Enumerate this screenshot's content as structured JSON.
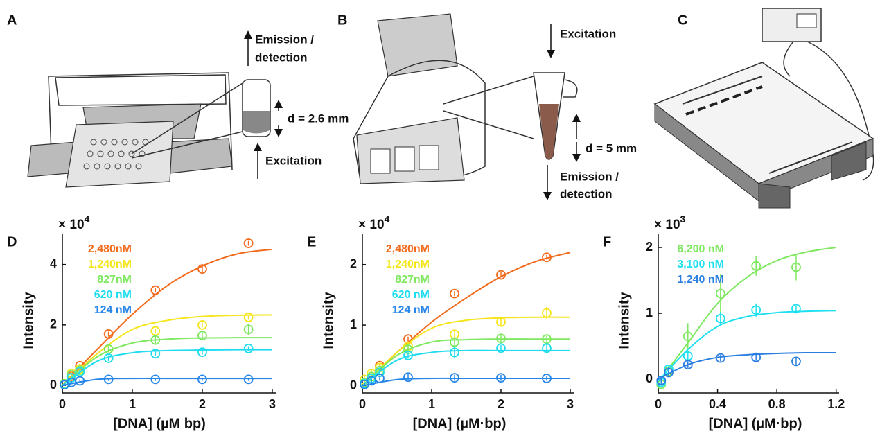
{
  "illustrations": {
    "A": {
      "label": "A",
      "texts": [
        "Emission /",
        "detection",
        "d = 2.6 mm",
        "Excitation"
      ]
    },
    "B": {
      "label": "B",
      "texts": [
        "Excitation",
        "d = 5 mm",
        "Emission /",
        "detection"
      ]
    },
    "C": {
      "label": "C"
    }
  },
  "chart_data": [
    {
      "type": "scatter",
      "panel": "D",
      "multiplier": "× 10",
      "multiplier_exponent": "4",
      "xlabel": "[DNA] (µM bp)",
      "ylabel": "Intensity",
      "xlim": [
        0,
        3.05
      ],
      "ylim": [
        -0.25,
        5
      ],
      "xticks": [
        0,
        1,
        2,
        3
      ],
      "yticks": [
        0,
        2,
        4
      ],
      "x": [
        0.03,
        0.13,
        0.25,
        0.66,
        1.33,
        2.0,
        2.66
      ],
      "fit_x": [
        0,
        0.5,
        1,
        1.5,
        2,
        2.5,
        3
      ],
      "series": [
        {
          "name": "2,480nM",
          "color": "#f26b1d",
          "values": [
            0.05,
            0.3,
            0.65,
            1.7,
            3.15,
            3.85,
            4.7
          ],
          "errors": [
            0.05,
            0.05,
            0.06,
            0.08,
            0.08,
            0.1,
            0.08
          ],
          "fit": [
            0,
            1.2,
            2.35,
            3.3,
            3.95,
            4.35,
            4.5
          ]
        },
        {
          "name": "1,240nM",
          "color": "#f5e51a",
          "values": [
            0.05,
            0.4,
            0.55,
            1.2,
            1.8,
            2.0,
            2.25
          ],
          "errors": [
            0.05,
            0.1,
            0.06,
            0.08,
            0.08,
            0.08,
            0.08
          ],
          "fit": [
            0,
            1.05,
            1.85,
            2.15,
            2.28,
            2.32,
            2.33
          ]
        },
        {
          "name": "827nM",
          "color": "#7ee85f",
          "values": [
            0.05,
            0.35,
            0.5,
            1.2,
            1.5,
            1.65,
            1.85
          ],
          "errors": [
            0.05,
            0.06,
            0.06,
            0.1,
            0.12,
            0.15,
            0.18
          ],
          "fit": [
            0,
            0.95,
            1.4,
            1.53,
            1.57,
            1.58,
            1.58
          ]
        },
        {
          "name": "620 nM",
          "color": "#1fdcf0",
          "values": [
            0.03,
            0.25,
            0.45,
            0.9,
            1.05,
            1.1,
            1.22
          ],
          "errors": [
            0.05,
            0.05,
            0.06,
            0.1,
            0.08,
            0.08,
            0.08
          ],
          "fit": [
            0,
            0.8,
            1.08,
            1.15,
            1.17,
            1.18,
            1.18
          ]
        },
        {
          "name": "124 nM",
          "color": "#2585e8",
          "values": [
            0.02,
            0.1,
            0.15,
            0.2,
            0.2,
            0.2,
            0.2
          ],
          "errors": [
            0.04,
            0.04,
            0.05,
            0.05,
            0.05,
            0.05,
            0.05
          ],
          "fit": [
            0,
            0.2,
            0.23,
            0.23,
            0.23,
            0.23,
            0.23
          ]
        }
      ]
    },
    {
      "type": "scatter",
      "panel": "E",
      "multiplier": "× 10",
      "multiplier_exponent": "4",
      "xlabel": "[DNA] (µM·bp)",
      "ylabel": "Intensity",
      "xlim": [
        0,
        3.05
      ],
      "ylim": [
        -0.12,
        2.5
      ],
      "xticks": [
        0,
        1,
        2,
        3
      ],
      "yticks": [
        0,
        1,
        2
      ],
      "x": [
        0.03,
        0.13,
        0.25,
        0.66,
        1.33,
        2.0,
        2.66
      ],
      "fit_x": [
        0,
        0.5,
        1,
        1.5,
        2,
        2.5,
        3
      ],
      "series": [
        {
          "name": "2,480nM",
          "color": "#f26b1d",
          "values": [
            0.02,
            0.15,
            0.33,
            0.77,
            1.52,
            1.83,
            2.12
          ],
          "errors": [
            0.03,
            0.03,
            0.03,
            0.04,
            0.04,
            0.04,
            0.04
          ],
          "fit": [
            0,
            0.55,
            1.05,
            1.45,
            1.8,
            2.05,
            2.2
          ]
        },
        {
          "name": "1,240nM",
          "color": "#f5e51a",
          "values": [
            0.1,
            0.2,
            0.3,
            0.65,
            0.85,
            1.05,
            1.2
          ],
          "errors": [
            0.1,
            0.06,
            0.05,
            0.06,
            0.06,
            0.07,
            0.1
          ],
          "fit": [
            0,
            0.55,
            0.95,
            1.08,
            1.12,
            1.13,
            1.13
          ]
        },
        {
          "name": "827nM",
          "color": "#7ee85f",
          "values": [
            0.05,
            0.15,
            0.25,
            0.6,
            0.72,
            0.78,
            0.77
          ],
          "errors": [
            0.04,
            0.04,
            0.04,
            0.06,
            0.07,
            0.08,
            0.05
          ],
          "fit": [
            0,
            0.5,
            0.72,
            0.76,
            0.77,
            0.77,
            0.77
          ]
        },
        {
          "name": "620 nM",
          "color": "#1fdcf0",
          "values": [
            0.03,
            0.12,
            0.22,
            0.5,
            0.55,
            0.62,
            0.62
          ],
          "errors": [
            0.03,
            0.04,
            0.04,
            0.05,
            0.1,
            0.05,
            0.08
          ],
          "fit": [
            0,
            0.42,
            0.55,
            0.58,
            0.58,
            0.58,
            0.58
          ]
        },
        {
          "name": "124 nM",
          "color": "#2585e8",
          "values": [
            0.02,
            0.08,
            0.12,
            0.14,
            0.13,
            0.13,
            0.12
          ],
          "errors": [
            0.03,
            0.03,
            0.04,
            0.05,
            0.05,
            0.05,
            0.04
          ],
          "fit": [
            0,
            0.1,
            0.12,
            0.12,
            0.12,
            0.12,
            0.12
          ]
        }
      ]
    },
    {
      "type": "scatter",
      "panel": "F",
      "multiplier": "× 10",
      "multiplier_exponent": "3",
      "xlabel": "[DNA] (µM·bp)",
      "ylabel": "Intensity",
      "xlim": [
        0,
        1.22
      ],
      "ylim": [
        -0.21,
        2.2
      ],
      "xticks": [
        0,
        0.4,
        0.8,
        1.2
      ],
      "yticks": [
        0,
        1,
        2
      ],
      "x": [
        0.02,
        0.07,
        0.2,
        0.42,
        0.66,
        0.93
      ],
      "fit_x": [
        0,
        0.2,
        0.4,
        0.6,
        0.8,
        1.0,
        1.2
      ],
      "series": [
        {
          "name": "6,200 nM",
          "color": "#7ee85f",
          "values": [
            -0.08,
            0.12,
            0.65,
            1.3,
            1.72,
            1.7
          ],
          "errors": [
            0.05,
            0.08,
            0.2,
            0.3,
            0.15,
            0.2
          ],
          "fit": [
            -0.05,
            0.55,
            1.15,
            1.55,
            1.8,
            1.93,
            2.0
          ]
        },
        {
          "name": "3,100 nM",
          "color": "#1fe0f0",
          "values": [
            -0.05,
            0.15,
            0.35,
            0.92,
            1.05,
            1.07
          ],
          "errors": [
            0.05,
            0.05,
            0.08,
            0.1,
            0.1,
            0.05
          ],
          "fit": [
            -0.03,
            0.45,
            0.8,
            0.95,
            1.01,
            1.03,
            1.04
          ]
        },
        {
          "name": "1,240 nM",
          "color": "#2b7fe0",
          "values": [
            -0.02,
            0.1,
            0.22,
            0.32,
            0.33,
            0.27
          ],
          "errors": [
            0.05,
            0.05,
            0.05,
            0.05,
            0.05,
            0.05
          ],
          "fit": [
            0,
            0.22,
            0.33,
            0.37,
            0.39,
            0.4,
            0.4
          ]
        }
      ]
    }
  ]
}
